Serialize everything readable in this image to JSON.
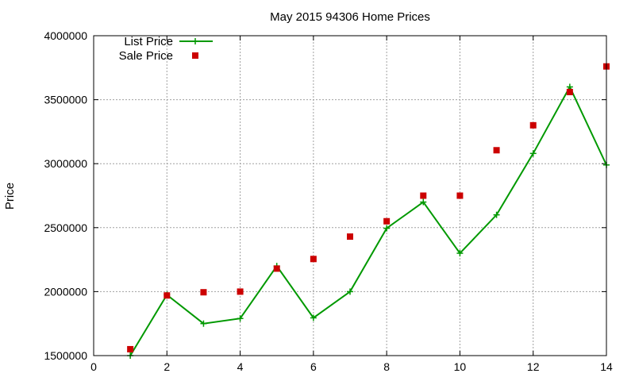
{
  "chart_data": {
    "type": "line",
    "title": "May 2015 94306 Home Prices",
    "xlabel": "",
    "ylabel": "Price",
    "xlim": [
      0,
      14
    ],
    "ylim": [
      1500000,
      4000000
    ],
    "x_ticks": [
      "0",
      "2",
      "4",
      "6",
      "8",
      "10",
      "12",
      "14"
    ],
    "y_ticks": [
      "1500000",
      "2000000",
      "2500000",
      "3000000",
      "3500000",
      "4000000"
    ],
    "grid": true,
    "legend_position": "top-left",
    "series": [
      {
        "name": "List Price",
        "style": "lines+points",
        "marker": "plus",
        "color": "#009900",
        "x": [
          1,
          2,
          3,
          4,
          5,
          6,
          7,
          8,
          9,
          10,
          11,
          12,
          13,
          14
        ],
        "y": [
          1500000,
          1975000,
          1750000,
          1790000,
          2200000,
          1795000,
          2000000,
          2495000,
          2700000,
          2300000,
          2600000,
          3080000,
          3600000,
          2990000
        ]
      },
      {
        "name": "Sale Price",
        "style": "points",
        "marker": "square",
        "color": "#cc0000",
        "x": [
          1,
          2,
          3,
          4,
          5,
          6,
          7,
          8,
          9,
          10,
          11,
          12,
          13,
          14
        ],
        "y": [
          1550000,
          1970000,
          1995000,
          2000000,
          2180000,
          2255000,
          2430000,
          2550000,
          2750000,
          2750000,
          3105000,
          3300000,
          3560000,
          3760000
        ]
      }
    ]
  }
}
